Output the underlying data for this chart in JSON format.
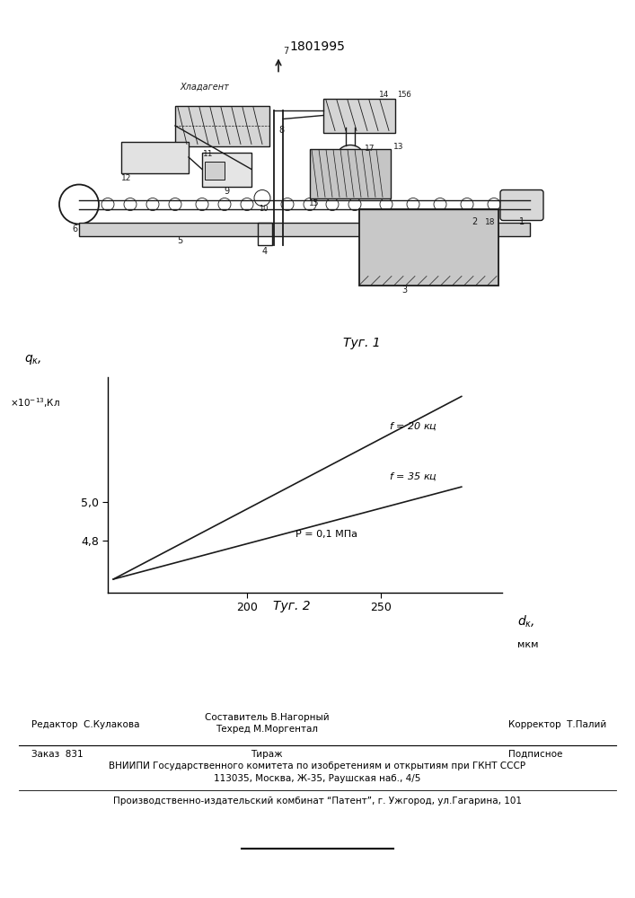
{
  "patent_number": "1801995",
  "fig1_label": "Τуг. 1",
  "fig2_label": "Τуг. 2",
  "ytick_labels": [
    "4,8",
    "5,0"
  ],
  "ytick_vals": [
    4.8,
    5.0
  ],
  "xtick_labels": [
    "200",
    "250"
  ],
  "xtick_vals": [
    200,
    250
  ],
  "line1_label": "f = 20 кц",
  "line2_label": "f = 35 кц",
  "pressure_label": "P = 0,1 МПа",
  "line1_x": [
    150,
    280
  ],
  "line1_y": [
    4.6,
    5.55
  ],
  "line2_x": [
    150,
    280
  ],
  "line2_y": [
    4.6,
    5.08
  ],
  "xlim": [
    148,
    295
  ],
  "ylim": [
    4.53,
    5.65
  ],
  "line_color": "#1a1a1a",
  "editor_text": "Редактор  С.Кулакова",
  "composer_text": "Составитель В.Нагорный",
  "techred_text": "Техред М.Моргентал",
  "corrector_text": "Корректор  Т.Палий",
  "order_text": "Заказ  831",
  "tirazh_text": "Тираж",
  "podpisnoe_text": "Подписное",
  "vnipi_text": "ВНИИПИ Государственного комитета по изобретениям и открытиям при ГКНТ СССР",
  "address_text": "113035, Москва, Ж-35, Раушская наб., 4/5",
  "plant_text": "Производственно-издательский комбинат “Патент”, г. Ужгород, ул.Гагарина, 101",
  "hladagent_label": "Хладагент"
}
